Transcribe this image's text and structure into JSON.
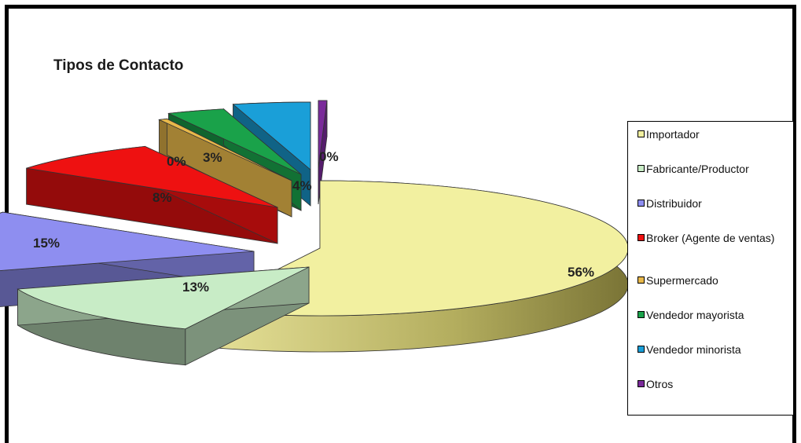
{
  "chart_data": {
    "type": "pie",
    "title": "Tipos de Contacto",
    "legend_position": "right",
    "slices": [
      {
        "name": "Importador",
        "value": 56,
        "label": "56%",
        "color": "#f2f0a0"
      },
      {
        "name": "Fabricante/Productor",
        "value": 13,
        "label": "13%",
        "color": "#c8ecc6"
      },
      {
        "name": "Distribuidor",
        "value": 15,
        "label": "15%",
        "color": "#8e8ef0"
      },
      {
        "name": "Broker (Agente de ventas)",
        "value": 8,
        "label": "8%",
        "color": "#ee1111"
      },
      {
        "name": "Supermercado",
        "value": 0,
        "label": "0%",
        "color": "#e8b84a"
      },
      {
        "name": "Vendedor mayorista",
        "value": 3,
        "label": "3%",
        "color": "#1aa24a"
      },
      {
        "name": "Vendedor minorista",
        "value": 4,
        "label": "4%",
        "color": "#1a9fd8"
      },
      {
        "name": "Otros",
        "value": 0,
        "label": "0%",
        "color": "#7a2a9a"
      }
    ]
  }
}
